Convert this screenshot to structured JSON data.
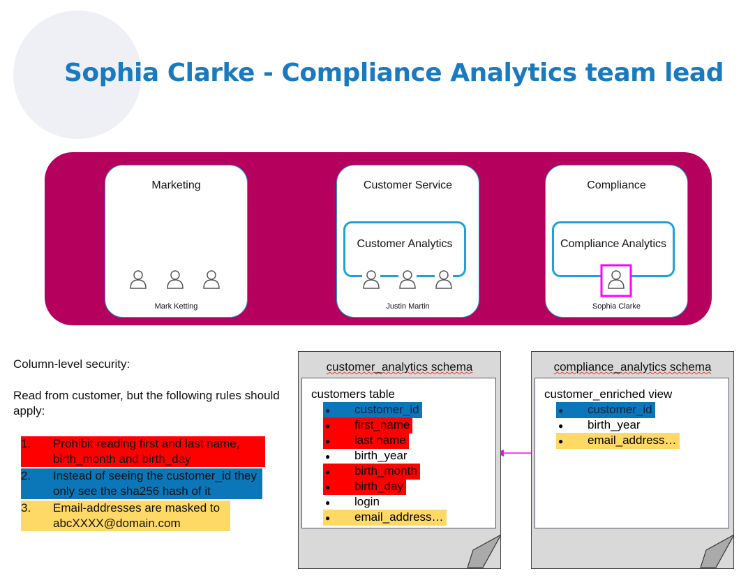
{
  "title": "Sophia Clarke - Compliance Analytics team lead",
  "departments": [
    {
      "name": "Marketing",
      "lead": "Mark Ketting",
      "team": null,
      "persons": 3
    },
    {
      "name": "Customer Service",
      "lead": "Justin Martin",
      "team": "Customer Analytics",
      "persons": 3
    },
    {
      "name": "Compliance",
      "lead": "Sophia Clarke",
      "team": "Compliance Analytics",
      "persons": 1,
      "highlighted_person": true
    }
  ],
  "notes": {
    "heading": "Column-level security:",
    "intro": "Read from customer, but the following rules should apply:",
    "rules": [
      {
        "num": "1.",
        "text": "Prohibit reading first and last name, birth_month and birth_day",
        "color": "#ff0000"
      },
      {
        "num": "2.",
        "text": "Instead of seeing the customer_id they only see the sha256 hash of it",
        "color": "#0b76b8"
      },
      {
        "num": "3.",
        "text": "Email-addresses are masked to abcXXXX@domain.com",
        "color": "#ffd966"
      }
    ]
  },
  "schemas": [
    {
      "name": "customer_analytics schema",
      "object": "customers table",
      "columns": [
        {
          "name": "customer_id",
          "color": "#0b76b8"
        },
        {
          "name": "first_name",
          "color": "#ff0000"
        },
        {
          "name": "last name",
          "color": "#ff0000"
        },
        {
          "name": "birth_year",
          "color": null
        },
        {
          "name": "birth_month",
          "color": "#ff0000"
        },
        {
          "name": "birth_day",
          "color": "#ff0000"
        },
        {
          "name": "login",
          "color": null
        },
        {
          "name": "email_address…",
          "color": "#ffd966"
        }
      ]
    },
    {
      "name": "compliance_analytics schema",
      "object": "customer_enriched view",
      "columns": [
        {
          "name": "customer_id",
          "color": "#0b76b8"
        },
        {
          "name": "birth_year",
          "color": null
        },
        {
          "name": "email_address…",
          "color": "#ffd966"
        }
      ]
    }
  ],
  "colors": {
    "title": "#1a7abf",
    "panel": "#b5005e",
    "border": "#1aa3d9",
    "arrow": "#ff00ff"
  }
}
